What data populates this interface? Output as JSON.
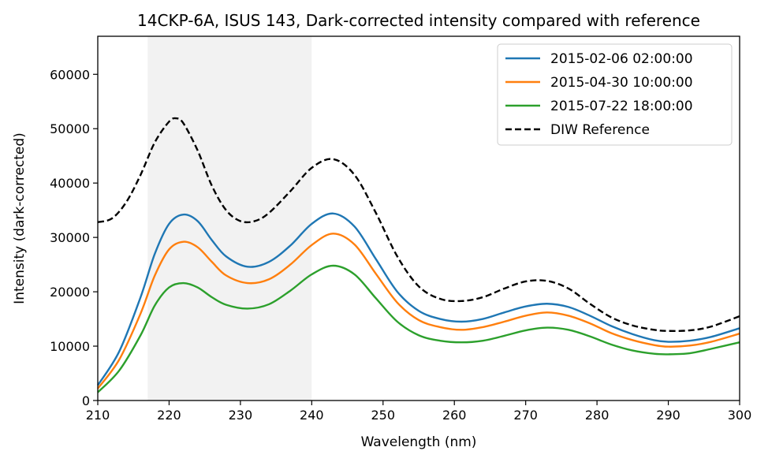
{
  "chart_data": {
    "type": "line",
    "title": "14CKP-6A, ISUS 143, Dark-corrected intensity compared with reference",
    "xlabel": "Wavelength (nm)",
    "ylabel": "Intensity (dark-corrected)",
    "xlim": [
      210,
      300
    ],
    "ylim": [
      0,
      67000
    ],
    "x_ticks": [
      210,
      220,
      230,
      240,
      250,
      260,
      270,
      280,
      290,
      300
    ],
    "x_tick_labels": [
      "210",
      "220",
      "230",
      "240",
      "250",
      "260",
      "270",
      "280",
      "290",
      "300"
    ],
    "y_ticks": [
      0,
      10000,
      20000,
      30000,
      40000,
      50000,
      60000
    ],
    "y_tick_labels": [
      "0",
      "10000",
      "20000",
      "30000",
      "40000",
      "50000",
      "60000"
    ],
    "grid": false,
    "legend_position": "top-right",
    "shaded_region": {
      "x": [
        217,
        240
      ],
      "color": "#d9d9d9"
    },
    "series": [
      {
        "name": "2015-02-06 02:00:00",
        "color": "#1f77b4",
        "style": "solid",
        "x": [
          210,
          213,
          216,
          218,
          220,
          222,
          224,
          226,
          228,
          231,
          234,
          237,
          240,
          243,
          246,
          249,
          252,
          255,
          258,
          261,
          264,
          267,
          270,
          273,
          276,
          279,
          282,
          285,
          288,
          290,
          293,
          296,
          300
        ],
        "y": [
          2800,
          9000,
          19000,
          27000,
          32500,
          34200,
          33000,
          29500,
          26500,
          24600,
          25500,
          28500,
          32500,
          34400,
          32000,
          26000,
          20000,
          16500,
          15000,
          14500,
          15000,
          16200,
          17300,
          17800,
          17200,
          15600,
          13700,
          12200,
          11100,
          10800,
          11000,
          11700,
          13300
        ]
      },
      {
        "name": "2015-04-30 10:00:00",
        "color": "#ff7f0e",
        "style": "solid",
        "x": [
          210,
          213,
          216,
          218,
          220,
          222,
          224,
          226,
          228,
          231,
          234,
          237,
          240,
          243,
          246,
          249,
          252,
          255,
          258,
          261,
          264,
          267,
          270,
          273,
          276,
          279,
          282,
          285,
          288,
          290,
          293,
          296,
          300
        ],
        "y": [
          2200,
          7500,
          16000,
          23000,
          27800,
          29200,
          28200,
          25500,
          23000,
          21600,
          22300,
          25000,
          28600,
          30700,
          28700,
          23300,
          18000,
          14800,
          13500,
          13000,
          13500,
          14500,
          15600,
          16200,
          15600,
          14200,
          12400,
          11100,
          10200,
          9900,
          10100,
          10800,
          12300
        ]
      },
      {
        "name": "2015-07-22 18:00:00",
        "color": "#2ca02c",
        "style": "solid",
        "x": [
          210,
          213,
          216,
          218,
          220,
          222,
          224,
          226,
          228,
          231,
          234,
          237,
          240,
          243,
          246,
          249,
          252,
          255,
          258,
          261,
          264,
          267,
          270,
          273,
          276,
          279,
          282,
          285,
          288,
          290,
          293,
          296,
          300
        ],
        "y": [
          1500,
          5500,
          12000,
          17500,
          20800,
          21600,
          20800,
          19000,
          17600,
          16900,
          17700,
          20200,
          23200,
          24800,
          23200,
          18800,
          14500,
          12000,
          11000,
          10700,
          11000,
          11900,
          12900,
          13400,
          13000,
          11800,
          10300,
          9200,
          8600,
          8500,
          8700,
          9500,
          10700
        ]
      },
      {
        "name": "DIW Reference",
        "color": "#000000",
        "style": "dashed",
        "x": [
          210,
          212,
          214,
          216,
          218,
          220,
          221,
          222,
          224,
          226,
          228,
          230,
          232,
          234,
          237,
          240,
          243,
          246,
          249,
          252,
          255,
          258,
          261,
          264,
          267,
          270,
          273,
          276,
          279,
          282,
          285,
          288,
          290,
          293,
          296,
          300
        ],
        "y": [
          32800,
          33500,
          36500,
          41500,
          47500,
          51300,
          51900,
          51000,
          46000,
          39500,
          35000,
          33000,
          33000,
          34500,
          38500,
          42800,
          44400,
          41500,
          34500,
          26500,
          21000,
          18700,
          18300,
          19000,
          20600,
          21900,
          22000,
          20600,
          17800,
          15300,
          13800,
          13000,
          12800,
          12900,
          13600,
          15500
        ]
      }
    ]
  }
}
